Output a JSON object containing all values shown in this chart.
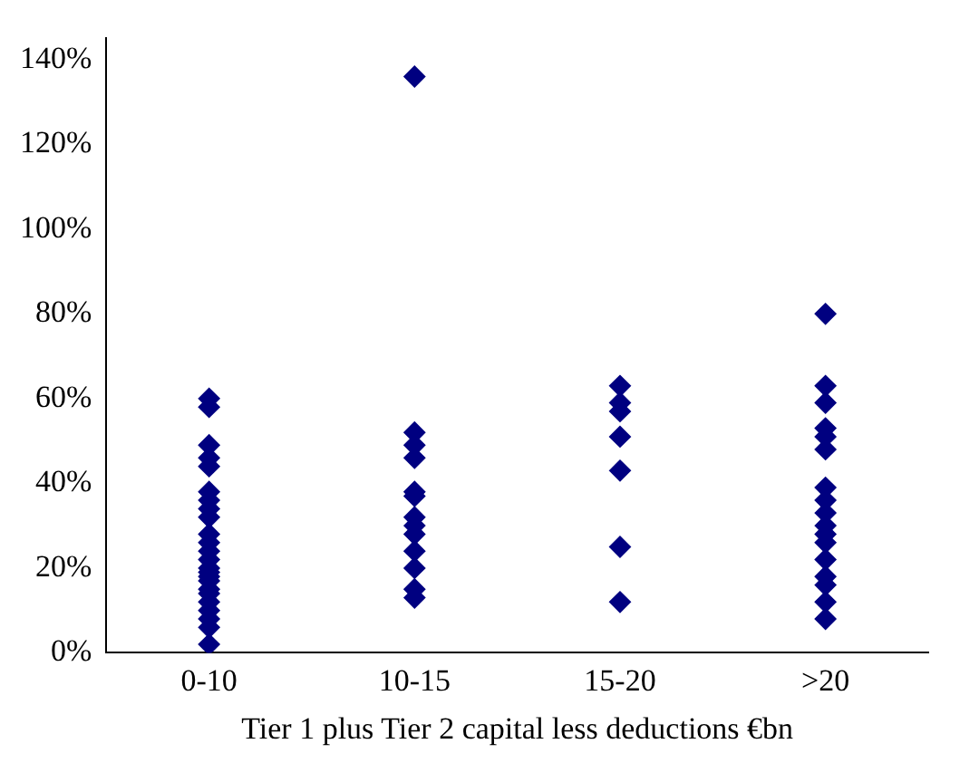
{
  "chart_data": {
    "type": "scatter",
    "xlabel": "Tier 1 plus Tier 2 capital less deductions €bn",
    "categories": [
      "0-10",
      "10-15",
      "15-20",
      ">20"
    ],
    "series": [
      {
        "color": "#000080",
        "x": [
          "0-10",
          "0-10",
          "0-10",
          "0-10",
          "0-10",
          "0-10",
          "0-10",
          "0-10",
          "0-10",
          "0-10",
          "0-10",
          "0-10",
          "0-10",
          "0-10",
          "0-10",
          "0-10",
          "0-10",
          "0-10",
          "0-10",
          "0-10",
          "0-10",
          "0-10",
          "0-10",
          "0-10",
          "10-15",
          "10-15",
          "10-15",
          "10-15",
          "10-15",
          "10-15",
          "10-15",
          "10-15",
          "10-15",
          "10-15",
          "10-15",
          "10-15",
          "10-15",
          "15-20",
          "15-20",
          "15-20",
          "15-20",
          "15-20",
          "15-20",
          "15-20",
          ">20",
          ">20",
          ">20",
          ">20",
          ">20",
          ">20",
          ">20",
          ">20",
          ">20",
          ">20",
          ">20",
          ">20",
          ">20",
          ">20",
          ">20",
          ">20",
          ">20"
        ],
        "values": [
          60,
          58,
          49,
          46,
          44,
          38,
          36,
          34,
          32,
          28,
          26,
          24,
          22,
          20,
          19,
          18,
          17,
          15,
          14,
          12,
          10,
          8,
          6,
          2,
          136,
          52,
          49,
          46,
          38,
          37,
          32,
          30,
          28,
          24,
          20,
          15,
          13,
          63,
          59,
          57,
          51,
          43,
          25,
          12,
          80,
          63,
          59,
          53,
          51,
          48,
          39,
          36,
          33,
          30,
          28,
          26,
          22,
          18,
          16,
          12,
          8
        ]
      }
    ],
    "ylim": [
      0,
      145
    ],
    "yticks": [
      {
        "value": 0,
        "label": "0%"
      },
      {
        "value": 20,
        "label": "20%"
      },
      {
        "value": 40,
        "label": "40%"
      },
      {
        "value": 60,
        "label": "60%"
      },
      {
        "value": 80,
        "label": "80%"
      },
      {
        "value": 100,
        "label": "100%"
      },
      {
        "value": 120,
        "label": "120%"
      },
      {
        "value": 140,
        "label": "140%"
      }
    ],
    "grid": false,
    "legend": false,
    "marker": "diamond"
  }
}
